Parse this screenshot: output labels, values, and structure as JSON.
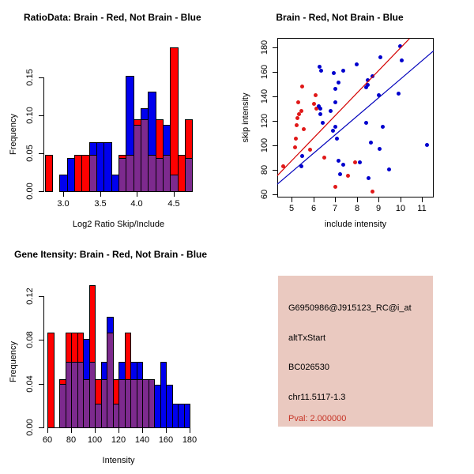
{
  "colors": {
    "red_bar": "#FF0000",
    "blue_bar": "#0000EE",
    "overlap": "#7D2A8E",
    "red_point": "#E01818",
    "blue_point": "#0000CD",
    "red_line": "#D40000",
    "blue_line": "#0000BB",
    "axis": "#000000",
    "info_bg": "#EAC9C0",
    "pval_red": "#C63224"
  },
  "chart_data": [
    {
      "type": "bar",
      "subtype": "overlaid-histogram",
      "title": "RatioData: Brain - Red, Not Brain - Blue",
      "xlabel": "Log2 Ratio Skip/Include",
      "ylabel": "Frequency",
      "x_tick_values": [
        3.0,
        3.5,
        4.0,
        4.5
      ],
      "x_tick_labels": [
        "3.0",
        "3.5",
        "4.0",
        "4.5"
      ],
      "y_tick_values": [
        0,
        0.05,
        0.1,
        0.15
      ],
      "y_tick_labels": [
        "0.00",
        "0.05",
        "0.10",
        "0.15"
      ],
      "xlim": [
        2.75,
        4.78
      ],
      "ylim": [
        0,
        0.15
      ],
      "bin_width": 0.1,
      "series": [
        "red",
        "blue"
      ],
      "bins": [
        {
          "x": 2.75,
          "red": 0.048,
          "blue": 0
        },
        {
          "x": 2.95,
          "red": 0,
          "blue": 0.022
        },
        {
          "x": 3.05,
          "red": 0,
          "blue": 0.044
        },
        {
          "x": 3.15,
          "red": 0.048,
          "blue": 0
        },
        {
          "x": 3.25,
          "red": 0.048,
          "blue": 0
        },
        {
          "x": 3.35,
          "red": 0.048,
          "blue": 0.065
        },
        {
          "x": 3.45,
          "red": 0,
          "blue": 0.065
        },
        {
          "x": 3.55,
          "red": 0,
          "blue": 0.065
        },
        {
          "x": 3.65,
          "red": 0,
          "blue": 0.022
        },
        {
          "x": 3.75,
          "red": 0.048,
          "blue": 0.044
        },
        {
          "x": 3.85,
          "red": 0.048,
          "blue": 0.152
        },
        {
          "x": 3.95,
          "red": 0.095,
          "blue": 0.087
        },
        {
          "x": 4.05,
          "red": 0.095,
          "blue": 0.109
        },
        {
          "x": 4.15,
          "red": 0.048,
          "blue": 0.131
        },
        {
          "x": 4.25,
          "red": 0.095,
          "blue": 0.044
        },
        {
          "x": 4.35,
          "red": 0.048,
          "blue": 0.087
        },
        {
          "x": 4.45,
          "red": 0.19,
          "blue": 0.022
        },
        {
          "x": 4.55,
          "red": 0.048,
          "blue": 0
        },
        {
          "x": 4.65,
          "red": 0.095,
          "blue": 0.044
        }
      ]
    },
    {
      "type": "scatter",
      "title": "Brain - Red, Not Brain - Blue",
      "xlabel": "include intensity",
      "ylabel": "skip intensity",
      "x_tick_values": [
        5,
        6,
        7,
        8,
        9,
        10,
        11
      ],
      "x_tick_labels": [
        "5",
        "6",
        "7",
        "8",
        "9",
        "10",
        "11"
      ],
      "y_tick_values": [
        60,
        80,
        100,
        120,
        140,
        160,
        180
      ],
      "y_tick_labels": [
        "60",
        "80",
        "100",
        "120",
        "140",
        "160",
        "180"
      ],
      "xlim": [
        4.33,
        11.7
      ],
      "ylim": [
        57,
        187
      ],
      "points_red": [
        [
          4.6,
          83
        ],
        [
          5.15,
          98
        ],
        [
          5.18,
          105
        ],
        [
          5.24,
          116
        ],
        [
          5.27,
          122
        ],
        [
          5.29,
          135
        ],
        [
          5.33,
          125
        ],
        [
          5.44,
          128
        ],
        [
          5.49,
          148
        ],
        [
          5.57,
          113
        ],
        [
          5.85,
          96
        ],
        [
          6.03,
          134
        ],
        [
          6.08,
          141
        ],
        [
          6.12,
          130
        ],
        [
          6.5,
          90
        ],
        [
          7.02,
          66
        ],
        [
          7.6,
          75
        ],
        [
          7.93,
          86
        ],
        [
          8.72,
          62
        ]
      ],
      "points_blue": [
        [
          5.43,
          83
        ],
        [
          5.47,
          91
        ],
        [
          6.24,
          132
        ],
        [
          6.27,
          164
        ],
        [
          6.3,
          125
        ],
        [
          6.33,
          130
        ],
        [
          6.36,
          161
        ],
        [
          6.44,
          118
        ],
        [
          6.8,
          128
        ],
        [
          6.9,
          112
        ],
        [
          6.93,
          159
        ],
        [
          6.99,
          135
        ],
        [
          7.0,
          146
        ],
        [
          7.0,
          115
        ],
        [
          7.09,
          105
        ],
        [
          7.15,
          151
        ],
        [
          7.15,
          87
        ],
        [
          7.21,
          76
        ],
        [
          7.36,
          161
        ],
        [
          7.36,
          84
        ],
        [
          8.0,
          166
        ],
        [
          8.12,
          86
        ],
        [
          8.42,
          147
        ],
        [
          8.42,
          118
        ],
        [
          8.48,
          149
        ],
        [
          8.5,
          153
        ],
        [
          8.54,
          73
        ],
        [
          8.66,
          102
        ],
        [
          8.72,
          156
        ],
        [
          9.0,
          141
        ],
        [
          9.05,
          97
        ],
        [
          9.09,
          172
        ],
        [
          9.2,
          115
        ],
        [
          9.49,
          80
        ],
        [
          9.9,
          142
        ],
        [
          10.0,
          181
        ],
        [
          10.06,
          169
        ],
        [
          11.24,
          100
        ]
      ],
      "fit_line_red": {
        "x1": 4.33,
        "y1": 75,
        "x2": 10.42,
        "y2": 187
      },
      "fit_line_blue": {
        "x1": 4.33,
        "y1": 68,
        "x2": 11.53,
        "y2": 177
      }
    },
    {
      "type": "bar",
      "subtype": "overlaid-histogram",
      "title": "Gene Itensity: Brain - Red, Not Brain - Blue",
      "xlabel": "Intensity",
      "ylabel": "Frequency",
      "x_tick_values": [
        60,
        80,
        100,
        120,
        140,
        160,
        180
      ],
      "x_tick_labels": [
        "60",
        "80",
        "100",
        "120",
        "140",
        "160",
        "180"
      ],
      "y_tick_values": [
        0,
        0.04,
        0.08,
        0.12
      ],
      "y_tick_labels": [
        "0.00",
        "0.04",
        "0.08",
        "0.12"
      ],
      "xlim": [
        60,
        180
      ],
      "ylim": [
        0,
        0.12
      ],
      "bin_width": 5,
      "series": [
        "red",
        "blue"
      ],
      "bins": [
        {
          "x": 60,
          "red": 0.087,
          "blue": 0
        },
        {
          "x": 70,
          "red": 0.044,
          "blue": 0.04
        },
        {
          "x": 75,
          "red": 0.087,
          "blue": 0.06
        },
        {
          "x": 80,
          "red": 0.087,
          "blue": 0.06
        },
        {
          "x": 85,
          "red": 0.087,
          "blue": 0.06
        },
        {
          "x": 90,
          "red": 0.044,
          "blue": 0.081
        },
        {
          "x": 95,
          "red": 0.13,
          "blue": 0.06
        },
        {
          "x": 100,
          "red": 0.044,
          "blue": 0.022
        },
        {
          "x": 105,
          "red": 0.044,
          "blue": 0.06
        },
        {
          "x": 110,
          "red": 0.087,
          "blue": 0.101
        },
        {
          "x": 115,
          "red": 0.044,
          "blue": 0.022
        },
        {
          "x": 120,
          "red": 0.044,
          "blue": 0.06
        },
        {
          "x": 125,
          "red": 0.087,
          "blue": 0.044
        },
        {
          "x": 130,
          "red": 0.044,
          "blue": 0.06
        },
        {
          "x": 135,
          "red": 0.044,
          "blue": 0.06
        },
        {
          "x": 140,
          "red": 0.044,
          "blue": 0.044
        },
        {
          "x": 145,
          "red": 0.044,
          "blue": 0.044
        },
        {
          "x": 150,
          "red": 0,
          "blue": 0.039
        },
        {
          "x": 155,
          "red": 0,
          "blue": 0.06
        },
        {
          "x": 160,
          "red": 0,
          "blue": 0.039
        },
        {
          "x": 165,
          "red": 0,
          "blue": 0.022
        },
        {
          "x": 170,
          "red": 0,
          "blue": 0.022
        },
        {
          "x": 175,
          "red": 0,
          "blue": 0.022
        }
      ]
    }
  ],
  "info_panel": {
    "probe_id": "G6950986@J915123_RC@i_at",
    "event_type": "altTxStart",
    "accession": "BC026530",
    "locus": "chr11.5117-1.3",
    "pval": "Pval: 2.000000"
  }
}
